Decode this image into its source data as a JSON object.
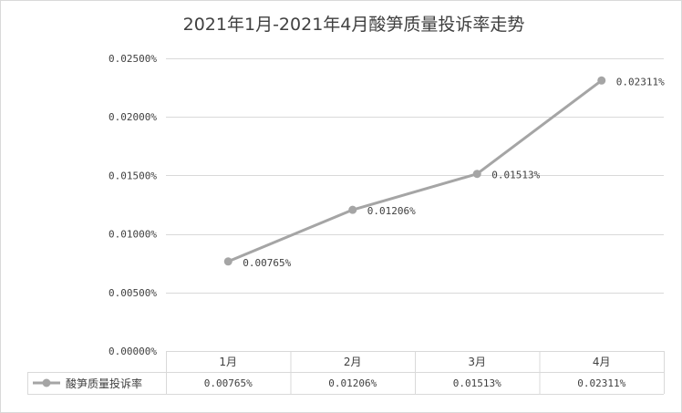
{
  "chart_data": {
    "type": "line",
    "title": "2021年1月-2021年4月酸笋质量投诉率走势",
    "categories": [
      "1月",
      "2月",
      "3月",
      "4月"
    ],
    "series": [
      {
        "name": "酸笋质量投诉率",
        "values": [
          0.00765,
          0.01206,
          0.01513,
          0.02311
        ],
        "labels": [
          "0.00765%",
          "0.01206%",
          "0.01513%",
          "0.02311%"
        ],
        "color": "#a5a5a5"
      }
    ],
    "yticks": [
      0,
      0.005,
      0.01,
      0.015,
      0.02,
      0.025
    ],
    "ytick_labels": [
      "0.00000%",
      "0.00500%",
      "0.01000%",
      "0.01500%",
      "0.02000%",
      "0.02500%"
    ],
    "ylim": [
      0,
      0.025
    ],
    "grid": true,
    "legend": "data-table",
    "data_table": true
  },
  "colors": {
    "line": "#a5a5a5",
    "grid": "#d9d9d9",
    "text": "#404040",
    "border": "#d9d9d9"
  }
}
